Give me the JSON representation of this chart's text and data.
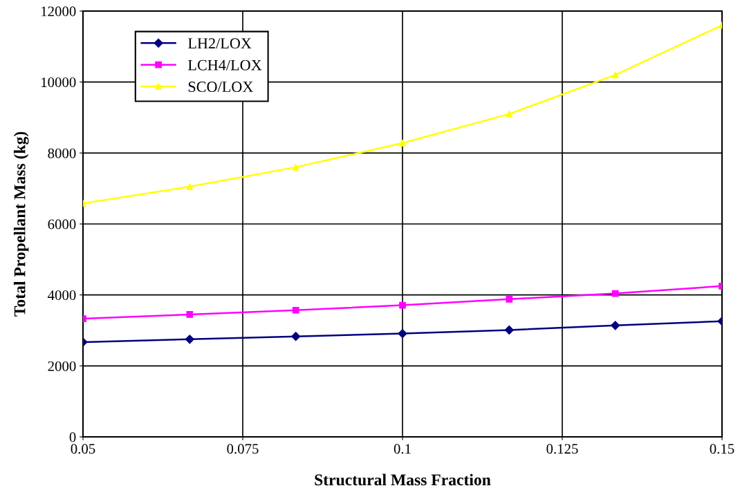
{
  "chart_data": {
    "type": "line",
    "xlabel": "Structural Mass Fraction",
    "ylabel": "Total Propellant Mass (kg)",
    "x": [
      0.05,
      0.0667,
      0.0833,
      0.1,
      0.1167,
      0.1333,
      0.15
    ],
    "series": [
      {
        "name": "LH2/LOX",
        "color": "#000080",
        "marker": "diamond",
        "values": [
          2670,
          2750,
          2830,
          2910,
          3010,
          3140,
          3260
        ]
      },
      {
        "name": "LCH4/LOX",
        "color": "#ff00ff",
        "marker": "square",
        "values": [
          3330,
          3450,
          3570,
          3710,
          3880,
          4040,
          4250
        ]
      },
      {
        "name": "SCO/LOX",
        "color": "#ffff00",
        "marker": "triangle",
        "values": [
          6580,
          7050,
          7600,
          8280,
          9100,
          10200,
          11600
        ]
      }
    ],
    "xlim": [
      0.05,
      0.15
    ],
    "xticks": [
      0.05,
      0.075,
      0.1,
      0.125,
      0.15
    ],
    "ylim": [
      0,
      12000
    ],
    "yticks": [
      0,
      2000,
      4000,
      6000,
      8000,
      10000,
      12000
    ],
    "grid": true,
    "legend": "top left",
    "line_style": "solid"
  }
}
